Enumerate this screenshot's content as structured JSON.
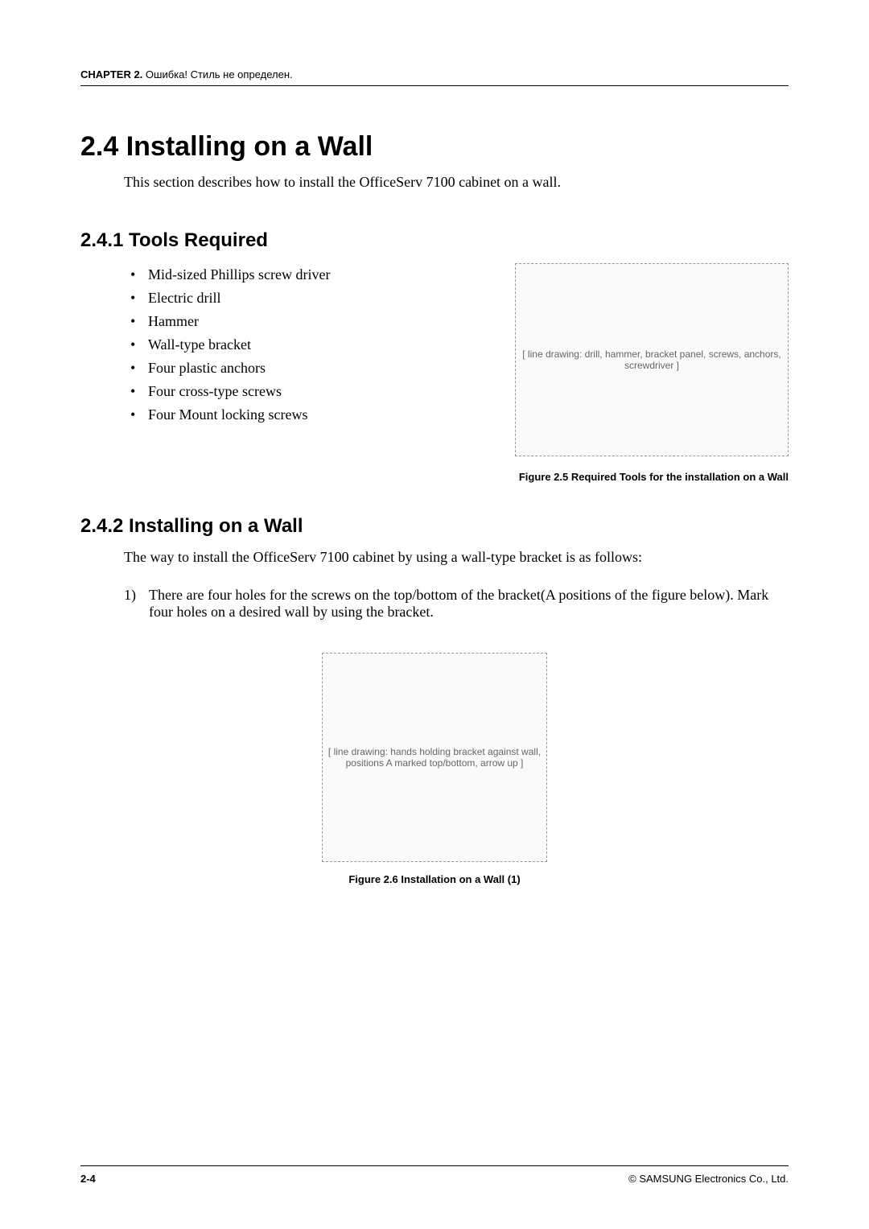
{
  "header": {
    "chapter_bold": "CHAPTER 2.",
    "chapter_rest": " Ошибка! Стиль не определен."
  },
  "section": {
    "number_title": "2.4  Installing on a Wall",
    "intro": "This section describes how to install the OfficeServ 7100 cabinet on a wall."
  },
  "sub1": {
    "title": "2.4.1  Tools Required",
    "items": [
      "Mid-sized Phillips screw driver",
      "Electric drill",
      "Hammer",
      "Wall-type bracket",
      "Four plastic anchors",
      "Four cross-type screws",
      "Four Mount locking screws"
    ],
    "figure_placeholder": "[ line drawing: drill, hammer, bracket panel, screws, anchors, screwdriver ]",
    "caption": "Figure 2.5    Required Tools for the installation on a Wall"
  },
  "sub2": {
    "title": "2.4.2  Installing on a Wall",
    "intro": "The way to install the OfficeServ 7100 cabinet by using a wall-type bracket is as follows:",
    "step_num": "1)",
    "step_text": "There are four holes for the screws on the top/bottom of the bracket(A positions of the figure below). Mark four holes on a desired wall by using the bracket.",
    "figure_placeholder": "[ line drawing: hands holding bracket against wall, positions A marked top/bottom, arrow up ]",
    "caption": "Figure 2.6    Installation on a Wall (1)"
  },
  "footer": {
    "page": "2-4",
    "copyright": "© SAMSUNG Electronics Co., Ltd."
  }
}
